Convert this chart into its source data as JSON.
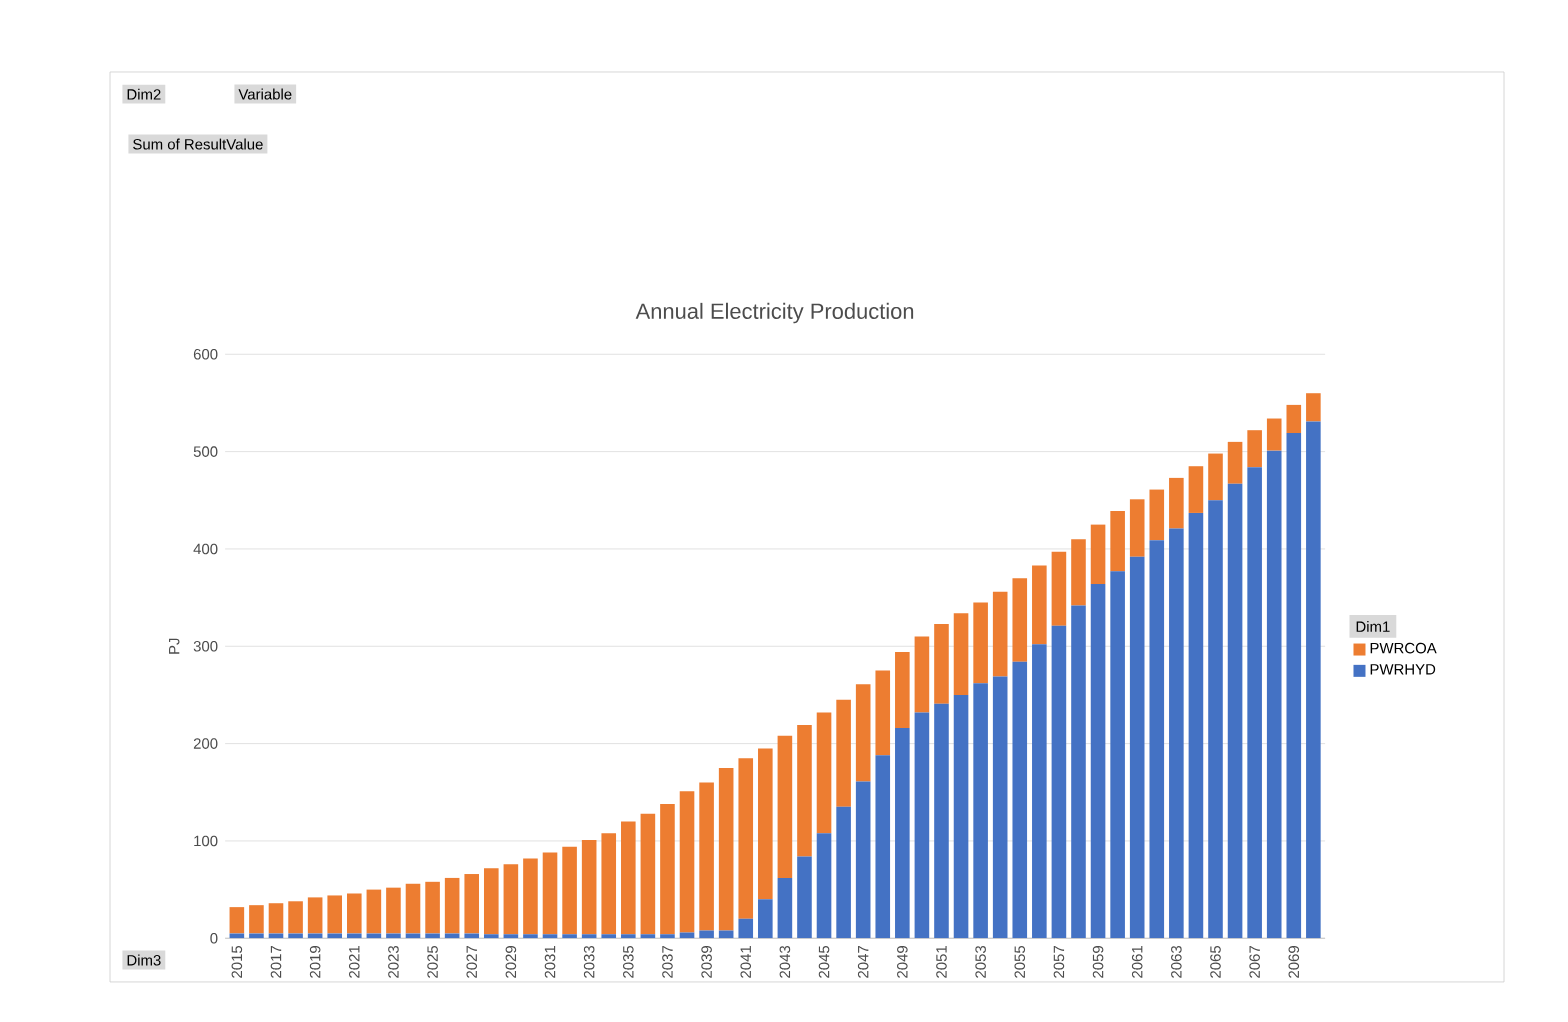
{
  "chart_data": {
    "type": "bar",
    "title": "Annual Electricity Production",
    "ylabel": "PJ",
    "legend_title": "Dim1",
    "annotations": [
      "Dim2",
      "Variable",
      "Sum of ResultValue",
      "Dim3"
    ],
    "categories": [
      "2015",
      null,
      "2017",
      null,
      "2019",
      null,
      "2021",
      null,
      "2023",
      null,
      "2025",
      null,
      "2027",
      null,
      "2029",
      null,
      "2031",
      null,
      "2033",
      null,
      "2035",
      null,
      "2037",
      null,
      "2039",
      null,
      "2041",
      null,
      "2043",
      null,
      "2045",
      null,
      "2047",
      null,
      "2049",
      null,
      "2051",
      null,
      "2053",
      null,
      "2055",
      null,
      "2057",
      null,
      "2059",
      null,
      "2061",
      null,
      "2063",
      null,
      "2065",
      null,
      "2067",
      null,
      "2069",
      null
    ],
    "stacked": true,
    "series": [
      {
        "name": "PWRHYD",
        "color": "#4472c4",
        "values": [
          5,
          5,
          5,
          5,
          5,
          5,
          5,
          5,
          5,
          5,
          5,
          5,
          5,
          4,
          4,
          4,
          4,
          4,
          4,
          4,
          4,
          4,
          4,
          6,
          8,
          8,
          20,
          40,
          62,
          84,
          108,
          135,
          161,
          188,
          216,
          232,
          241,
          250,
          262,
          269,
          284,
          302,
          321,
          342,
          364,
          377,
          392,
          409,
          421,
          437,
          450,
          467,
          484,
          501,
          519,
          531
        ]
      },
      {
        "name": "PWRCOA",
        "color": "#ed7d31",
        "values": [
          27,
          29,
          31,
          33,
          37,
          39,
          41,
          45,
          47,
          51,
          53,
          57,
          61,
          68,
          72,
          78,
          84,
          90,
          97,
          104,
          116,
          124,
          134,
          145,
          152,
          167,
          165,
          155,
          146,
          135,
          124,
          110,
          100,
          87,
          78,
          78,
          82,
          84,
          83,
          87,
          86,
          81,
          76,
          68,
          61,
          62,
          59,
          52,
          52,
          48,
          48,
          43,
          38,
          33,
          29,
          29
        ]
      }
    ],
    "ylim": [
      0,
      600
    ],
    "yticks": [
      0,
      100,
      200,
      300,
      400,
      500,
      600
    ],
    "grid": "y",
    "legend": "right"
  }
}
